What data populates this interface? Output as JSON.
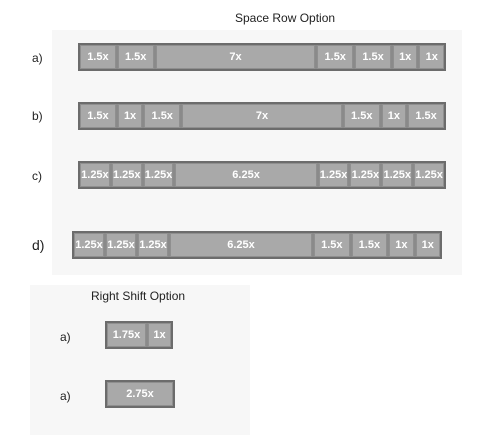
{
  "space_section": {
    "title": "Space Row Option",
    "rows": [
      {
        "label": "a)",
        "keys": [
          "1.5x",
          "1.5x",
          "7x",
          "1.5x",
          "1.5x",
          "1x",
          "1x"
        ]
      },
      {
        "label": "b)",
        "keys": [
          "1.5x",
          "1x",
          "1.5x",
          "7x",
          "1.5x",
          "1x",
          "1.5x"
        ]
      },
      {
        "label": "c)",
        "keys": [
          "1.25x",
          "1.25x",
          "1.25x",
          "6.25x",
          "1.25x",
          "1.25x",
          "1.25x",
          "1.25x"
        ]
      },
      {
        "label": "d)",
        "keys": [
          "1.25x",
          "1.25x",
          "1.25x",
          "6.25x",
          "1.5x",
          "1.5x",
          "1x",
          "1x"
        ]
      }
    ]
  },
  "shift_section": {
    "title": "Right Shift Option",
    "rows": [
      {
        "label": "a)",
        "keys": [
          "1.75x",
          "1x"
        ]
      },
      {
        "label": "a)",
        "keys": [
          "2.75x"
        ]
      }
    ]
  },
  "colors": {
    "key_fill": "#a9a9a9",
    "key_gap": "#8a8a8a",
    "key_border": "#6c6c6c",
    "key_text": "#ffffff"
  }
}
